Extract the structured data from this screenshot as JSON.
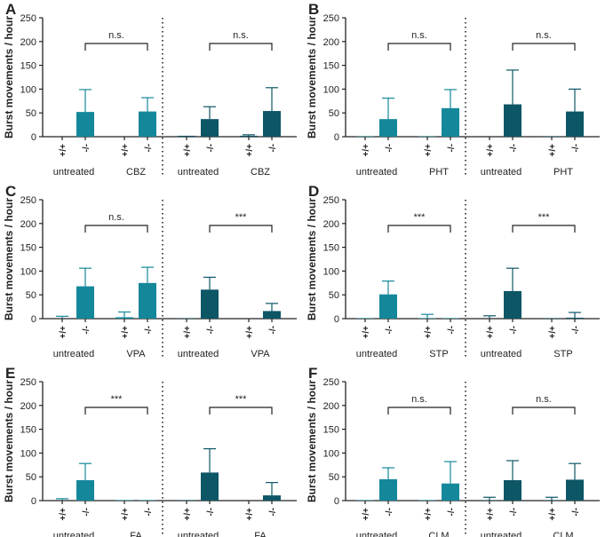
{
  "colors": {
    "light": "#14889a",
    "dark": "#0d5666",
    "axis": "#222222"
  },
  "chart_data": [
    {
      "type": "bar",
      "panel": "A",
      "ylabel": "Burst movements / hour",
      "ylim": [
        0,
        250
      ],
      "yticks": [
        "0",
        "50",
        "100",
        "150",
        "200",
        "250"
      ],
      "genotypes": [
        "+/+",
        "-/-",
        "+/+",
        "-/-",
        "+/+",
        "-/-",
        "+/+",
        "-/-"
      ],
      "groups": [
        "untreated",
        "CBZ",
        "untreated",
        "CBZ"
      ],
      "values": [
        0,
        52,
        0,
        53,
        2,
        37,
        2,
        54
      ],
      "errors": [
        0,
        47,
        0,
        29,
        0,
        26,
        2,
        49
      ],
      "significance": [
        "n.s.",
        "n.s."
      ]
    },
    {
      "type": "bar",
      "panel": "B",
      "ylabel": "Burst movements / hour",
      "ylim": [
        0,
        250
      ],
      "yticks": [
        "0",
        "50",
        "100",
        "150",
        "200",
        "250"
      ],
      "genotypes": [
        "+/+",
        "-/-",
        "+/+",
        "-/-",
        "+/+",
        "-/-",
        "+/+",
        "-/-"
      ],
      "groups": [
        "untreated",
        "PHT",
        "untreated",
        "PHT"
      ],
      "values": [
        1,
        37,
        1,
        60,
        0,
        68,
        1,
        53
      ],
      "errors": [
        0,
        44,
        0,
        39,
        0,
        72,
        0,
        47
      ],
      "significance": [
        "n.s.",
        "n.s."
      ]
    },
    {
      "type": "bar",
      "panel": "C",
      "ylabel": "Burst movements / hour",
      "ylim": [
        0,
        250
      ],
      "yticks": [
        "0",
        "50",
        "100",
        "150",
        "200",
        "250"
      ],
      "genotypes": [
        "+/+",
        "-/-",
        "+/+",
        "-/-",
        "+/+",
        "-/-",
        "+/+",
        "-/-"
      ],
      "groups": [
        "untreated",
        "VPA",
        "untreated",
        "VPA"
      ],
      "values": [
        0,
        68,
        3,
        75,
        1,
        61,
        0,
        16
      ],
      "errors": [
        5,
        38,
        11,
        33,
        0,
        26,
        0,
        16
      ],
      "significance": [
        "n.s.",
        "***"
      ]
    },
    {
      "type": "bar",
      "panel": "D",
      "ylabel": "Burst movements / hour",
      "ylim": [
        0,
        250
      ],
      "yticks": [
        "0",
        "50",
        "100",
        "150",
        "200",
        "250"
      ],
      "genotypes": [
        "+/+",
        "-/-",
        "+/+",
        "-/-",
        "+/+",
        "-/-",
        "+/+",
        "-/-"
      ],
      "groups": [
        "untreated",
        "STP",
        "untreated",
        "STP"
      ],
      "values": [
        1,
        51,
        1,
        1,
        0,
        58,
        1,
        2
      ],
      "errors": [
        0,
        28,
        8,
        0,
        6,
        48,
        0,
        11
      ],
      "significance": [
        "***",
        "***"
      ]
    },
    {
      "type": "bar",
      "panel": "E",
      "ylabel": "Burst movements / hour",
      "ylim": [
        0,
        250
      ],
      "yticks": [
        "0",
        "50",
        "100",
        "150",
        "200",
        "250"
      ],
      "genotypes": [
        "+/+",
        "-/-",
        "+/+",
        "-/-",
        "+/+",
        "-/-",
        "+/+",
        "-/-"
      ],
      "groups": [
        "untreated",
        "FA",
        "untreated",
        "FA"
      ],
      "values": [
        0,
        43,
        1,
        1,
        1,
        59,
        0,
        11
      ],
      "errors": [
        4,
        35,
        0,
        0,
        0,
        50,
        0,
        27
      ],
      "significance": [
        "***",
        "***"
      ]
    },
    {
      "type": "bar",
      "panel": "F",
      "ylabel": "Burst movements / hour",
      "ylim": [
        0,
        250
      ],
      "yticks": [
        "0",
        "50",
        "100",
        "150",
        "200",
        "250"
      ],
      "genotypes": [
        "+/+",
        "-/-",
        "+/+",
        "-/-",
        "+/+",
        "-/-",
        "+/+",
        "-/-"
      ],
      "groups": [
        "untreated",
        "CLM",
        "untreated",
        "CLM"
      ],
      "values": [
        1,
        45,
        1,
        36,
        1,
        43,
        1,
        44
      ],
      "errors": [
        0,
        24,
        0,
        46,
        6,
        41,
        6,
        34
      ],
      "significance": [
        "n.s.",
        "n.s."
      ]
    }
  ]
}
